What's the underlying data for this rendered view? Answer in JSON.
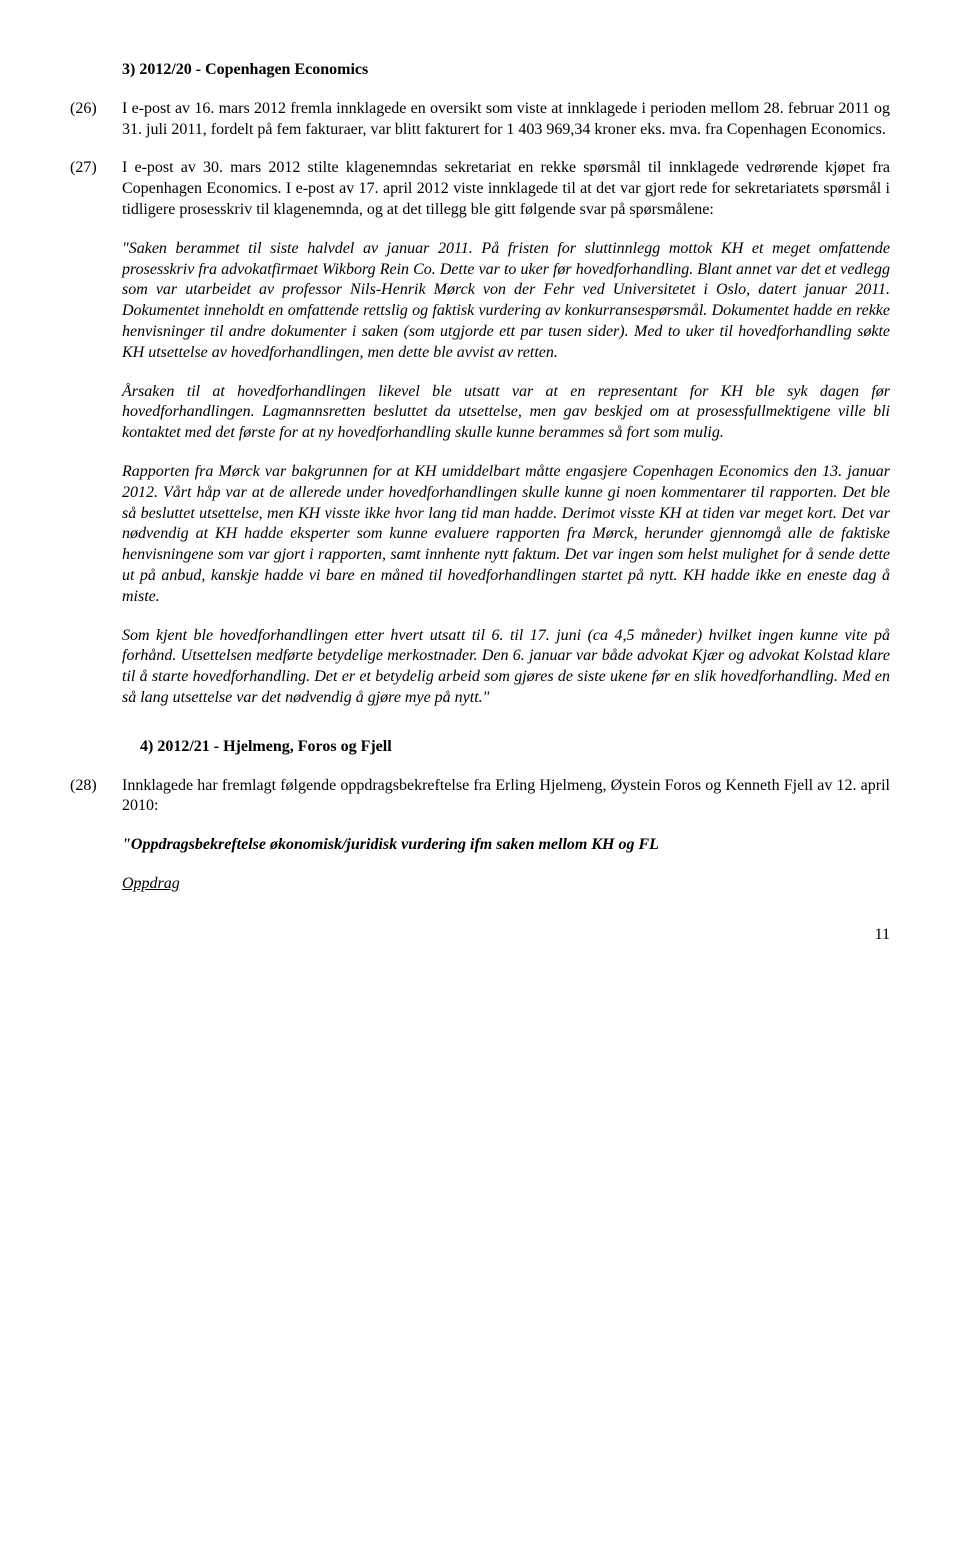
{
  "heading3": "3)  2012/20 - Copenhagen Economics",
  "para26_num": "(26)",
  "para26": "I e-post av 16. mars 2012 fremla innklagede en oversikt som viste at innklagede i perioden mellom 28. februar 2011 og 31. juli 2011, fordelt på fem fakturaer, var blitt fakturert for 1 403 969,34 kroner eks. mva. fra Copenhagen Economics.",
  "para27_num": "(27)",
  "para27": "I e-post av 30. mars 2012 stilte klagenemndas sekretariat en rekke spørsmål til innklagede vedrørende kjøpet fra Copenhagen Economics. I e-post av 17. april 2012 viste innklagede til at det var gjort rede for sekretariatets spørsmål i tidligere prosesskriv til klagenemnda, og at det tillegg ble gitt følgende svar på spørsmålene:",
  "quote1": "\"Saken berammet til siste halvdel av januar 2011. På fristen for sluttinnlegg mottok KH et meget omfattende prosesskriv fra advokatfirmaet Wikborg Rein Co. Dette var to uker før hovedforhandling. Blant annet var det et vedlegg som var utarbeidet av professor Nils-Henrik Mørck von der Fehr ved Universitetet i Oslo, datert januar 2011. Dokumentet inneholdt en omfattende rettslig og faktisk vurdering av konkurransespørsmål. Dokumentet hadde en rekke henvisninger til andre dokumenter i saken (som utgjorde ett par tusen sider). Med to uker til hovedforhandling søkte KH utsettelse av hovedforhandlingen, men dette ble avvist av retten.",
  "quote2": "Årsaken til at hovedforhandlingen likevel ble utsatt var at en representant for KH ble syk dagen før hovedforhandlingen. Lagmannsretten besluttet da utsettelse, men gav beskjed om at prosessfullmektigene ville bli kontaktet med det første for at ny hovedforhandling skulle kunne berammes så fort som mulig.",
  "quote3": "Rapporten fra Mørck var bakgrunnen for at KH umiddelbart måtte engasjere Copenhagen Economics den 13. januar 2012. Vårt håp var at de allerede under hovedforhandlingen skulle kunne gi noen kommentarer til rapporten. Det ble så besluttet utsettelse, men KH visste ikke hvor lang tid man hadde.  Derimot visste KH at tiden var meget kort. Det var nødvendig at KH hadde eksperter som kunne evaluere rapporten fra Mørck, herunder gjennomgå alle de faktiske henvisningene som var gjort i rapporten, samt innhente nytt faktum. Det var ingen som helst mulighet for å sende dette ut på anbud, kanskje hadde vi bare en måned til hovedforhandlingen startet på nytt. KH hadde ikke en eneste dag å miste.",
  "quote4": "Som kjent ble hovedforhandlingen etter hvert utsatt til 6. til 17. juni (ca 4,5 måneder) hvilket ingen kunne vite på forhånd. Utsettelsen medførte betydelige merkostnader. Den 6. januar var både advokat Kjær og advokat Kolstad klare til å starte hovedforhandling. Det er et betydelig arbeid som gjøres de siste ukene før en slik hovedforhandling. Med en så lang utsettelse var det nødvendig å gjøre mye på nytt.\"",
  "heading4": "4)  2012/21 - Hjelmeng, Foros og Fjell",
  "para28_num": "(28)",
  "para28": "Innklagede har fremlagt følgende oppdragsbekreftelse fra Erling Hjelmeng, Øystein Foros og Kenneth Fjell av 12. april 2010:",
  "quote_head": "\"Oppdragsbekreftelse økonomisk/juridisk vurdering ifm saken mellom KH og FL",
  "oppdrag": "Oppdrag",
  "page_num": "11"
}
